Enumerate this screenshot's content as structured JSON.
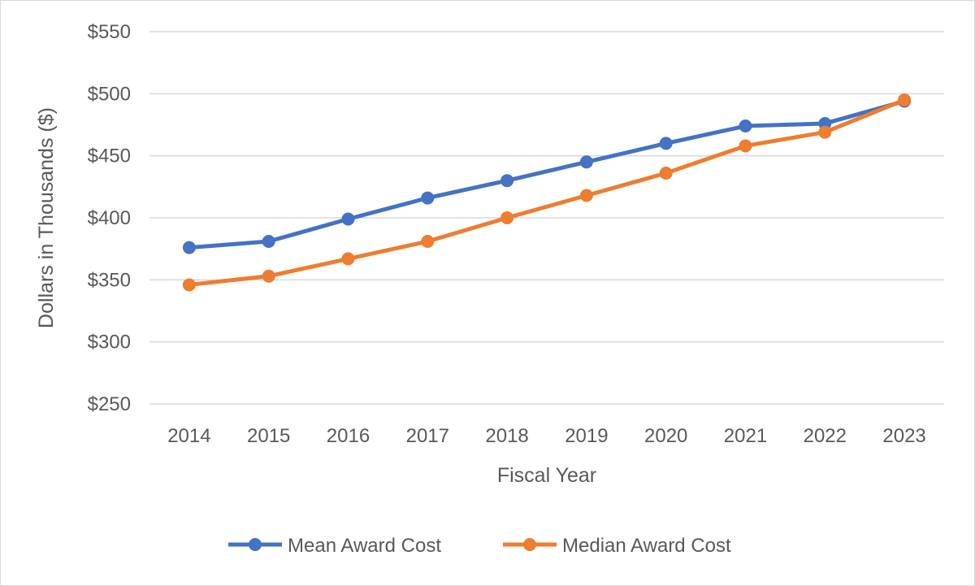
{
  "chart_data": {
    "type": "line",
    "title": "",
    "xlabel": "Fiscal Year",
    "ylabel": "Dollars in Thousands ($)",
    "categories": [
      "2014",
      "2015",
      "2016",
      "2017",
      "2018",
      "2019",
      "2020",
      "2021",
      "2022",
      "2023"
    ],
    "ylim": [
      250,
      550
    ],
    "yticks": [
      250,
      300,
      350,
      400,
      450,
      500,
      550
    ],
    "ytick_labels": [
      "$250",
      "$300",
      "$350",
      "$400",
      "$450",
      "$500",
      "$550"
    ],
    "grid": true,
    "legend_position": "bottom",
    "series": [
      {
        "name": "Mean Award Cost",
        "color": "#4472c4",
        "values": [
          376,
          381,
          399,
          416,
          430,
          445,
          460,
          474,
          476,
          494
        ]
      },
      {
        "name": "Median Award Cost",
        "color": "#ed7d31",
        "values": [
          346,
          353,
          367,
          381,
          400,
          418,
          436,
          458,
          469,
          495
        ]
      }
    ]
  }
}
